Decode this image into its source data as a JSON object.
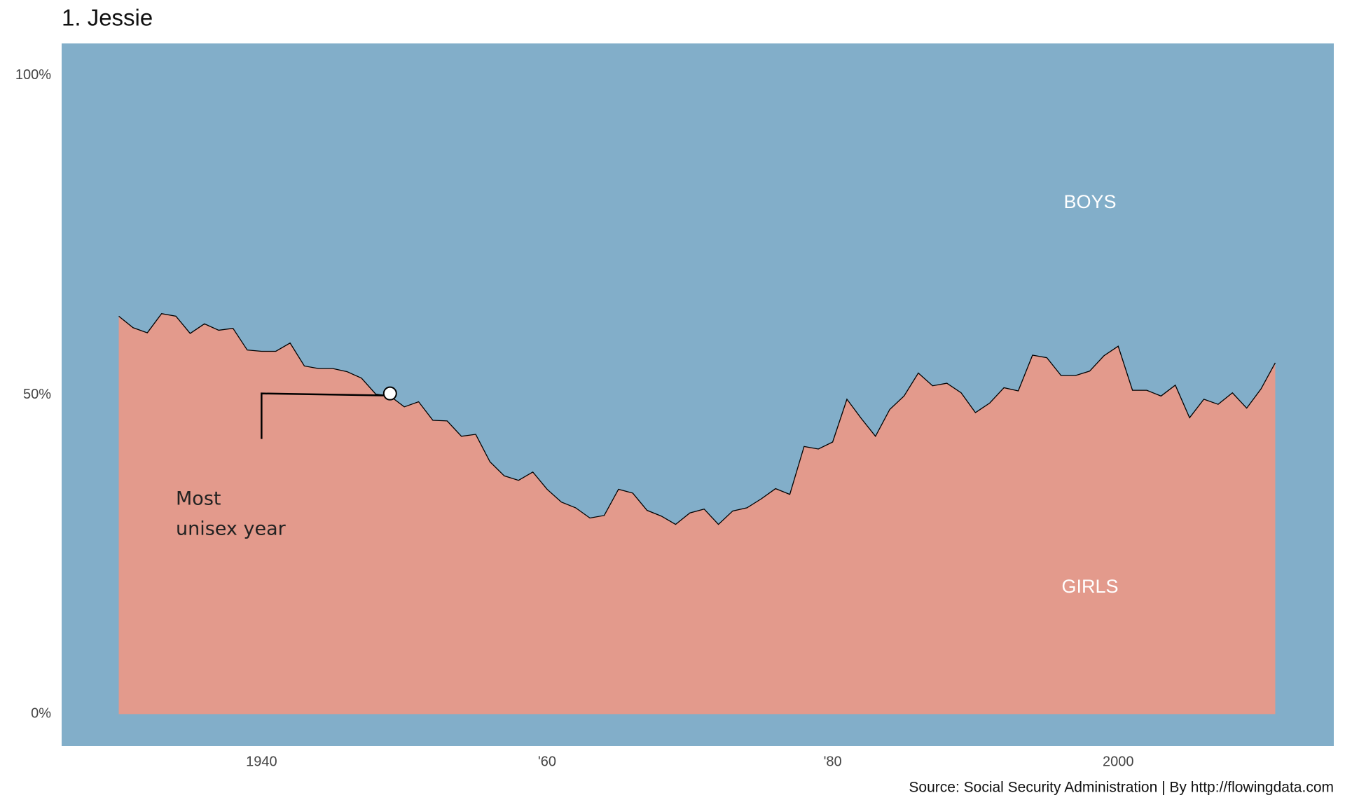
{
  "chart_data": {
    "type": "area",
    "title": "1. Jessie",
    "caption": "Source: Social Security Administration | By http://flowingdata.com",
    "x": [
      1930,
      1931,
      1932,
      1933,
      1934,
      1935,
      1936,
      1937,
      1938,
      1939,
      1940,
      1941,
      1942,
      1943,
      1944,
      1945,
      1946,
      1947,
      1948,
      1949,
      1950,
      1951,
      1952,
      1953,
      1954,
      1955,
      1956,
      1957,
      1958,
      1959,
      1960,
      1961,
      1962,
      1963,
      1964,
      1965,
      1966,
      1967,
      1968,
      1969,
      1970,
      1971,
      1972,
      1973,
      1974,
      1975,
      1976,
      1977,
      1978,
      1979,
      1980,
      1981,
      1982,
      1983,
      1984,
      1985,
      1986,
      1987,
      1988,
      1989,
      1990,
      1991,
      1992,
      1993,
      1994,
      1995,
      1996,
      1997,
      1998,
      1999,
      2000,
      2001,
      2002,
      2003,
      2004,
      2005,
      2006,
      2007,
      2008,
      2009,
      2010,
      2011
    ],
    "series": [
      {
        "name": "GIRLS",
        "color": "#e39a8c",
        "values": [
          62.3,
          60.5,
          59.7,
          62.7,
          62.3,
          59.6,
          61.1,
          60.1,
          60.4,
          57.0,
          56.8,
          56.8,
          58.1,
          54.5,
          54.1,
          54.1,
          53.6,
          52.6,
          50.1,
          49.8,
          48.1,
          48.9,
          46.0,
          45.9,
          43.5,
          43.8,
          39.5,
          37.3,
          36.6,
          37.9,
          35.2,
          33.2,
          32.3,
          30.7,
          31.1,
          35.2,
          34.6,
          31.9,
          31.0,
          29.7,
          31.5,
          32.1,
          29.7,
          31.8,
          32.3,
          33.7,
          35.3,
          34.4,
          41.9,
          41.5,
          42.6,
          49.3,
          46.3,
          43.5,
          47.7,
          49.8,
          53.4,
          51.4,
          51.8,
          50.3,
          47.2,
          48.7,
          51.1,
          50.6,
          56.2,
          55.8,
          53.0,
          53.0,
          53.7,
          56.1,
          57.6,
          50.7,
          50.7,
          49.8,
          51.5,
          46.4,
          49.3,
          48.5,
          50.3,
          47.9,
          50.9,
          55.0
        ]
      }
    ],
    "other_label": "BOYS",
    "background": "#82aec9",
    "highlight": {
      "x": 1949,
      "value": 50.2,
      "label": [
        "Most",
        "unisex year"
      ]
    },
    "xlim": [
      1926,
      2015.1
    ],
    "ylim": [
      -5,
      105
    ],
    "xticks": [
      1940,
      {
        "value": 1960,
        "label": "'60"
      },
      {
        "value": 1980,
        "label": "'80"
      },
      2000
    ],
    "yticks": [
      {
        "value": 0,
        "label": "0%"
      },
      {
        "value": 50,
        "label": "50%"
      },
      {
        "value": 100,
        "label": "100%"
      }
    ]
  }
}
